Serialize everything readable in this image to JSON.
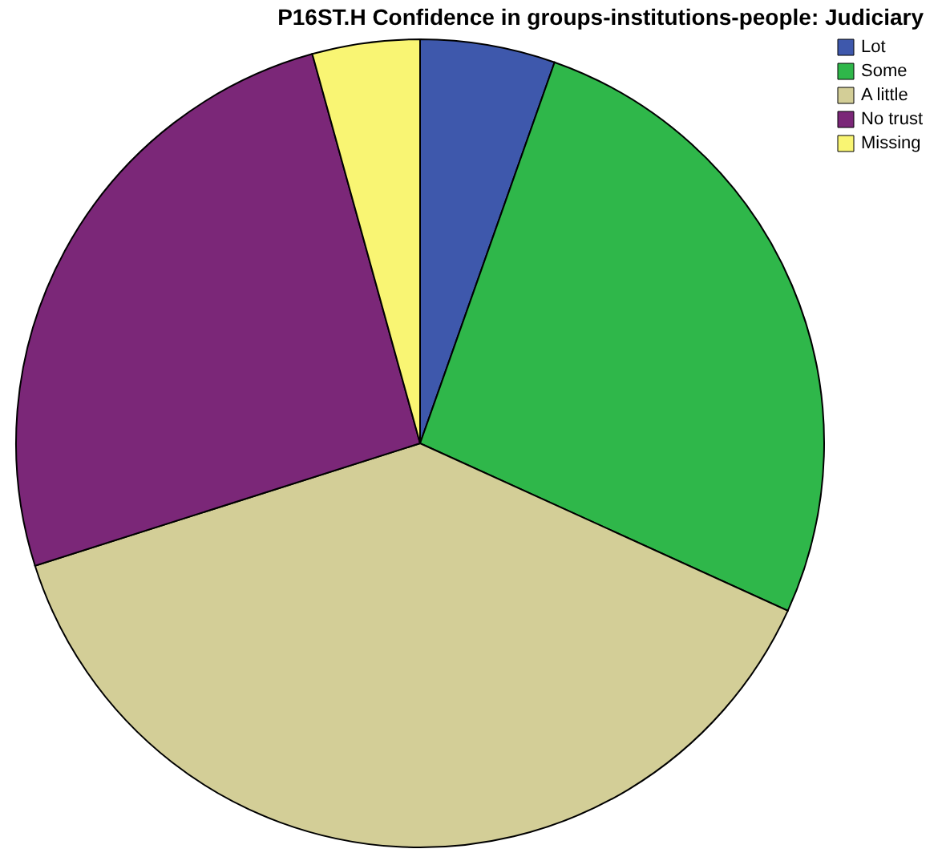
{
  "chart_data": {
    "type": "pie",
    "title": "P16ST.H Confidence in groups-institutions-people: Judiciary",
    "categories": [
      "Lot",
      "Some",
      "A little",
      "No trust",
      "Missing"
    ],
    "values": [
      5.4,
      26.4,
      38.3,
      25.6,
      4.3
    ],
    "colors": [
      "#3e58ac",
      "#2fb74a",
      "#d3ce97",
      "#7b2778",
      "#f9f573"
    ],
    "legend": "top right"
  }
}
